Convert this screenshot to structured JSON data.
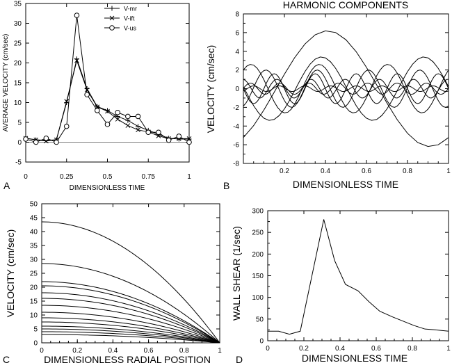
{
  "chart_data": [
    {
      "panel": "A",
      "type": "line",
      "title": "",
      "xlabel": "DIMENSIONLESS TIME",
      "ylabel": "AVERAGE VELOCITY (cm/sec)",
      "xlim": [
        0,
        1
      ],
      "ylim": [
        -5,
        35
      ],
      "xticks": [
        "0",
        "0.25",
        "0.5",
        "0.75",
        "1"
      ],
      "yticks": [
        "-5",
        "0",
        "5",
        "10",
        "15",
        "20",
        "25",
        "30",
        "35"
      ],
      "x": [
        0,
        0.0625,
        0.125,
        0.1875,
        0.25,
        0.3125,
        0.375,
        0.4375,
        0.5,
        0.5625,
        0.625,
        0.6875,
        0.75,
        0.8125,
        0.875,
        0.9375,
        1
      ],
      "series": [
        {
          "name": "V-mr",
          "marker": "plus",
          "values": [
            1,
            0.6,
            0.5,
            0.6,
            10,
            21,
            13.5,
            9,
            8,
            6.5,
            5.5,
            4,
            3,
            2,
            1,
            0.8,
            0.8
          ]
        },
        {
          "name": "V-ift",
          "marker": "x",
          "values": [
            1,
            0.6,
            0.3,
            0.6,
            10.3,
            20.6,
            13.2,
            8.9,
            7.8,
            5.8,
            4.2,
            3.1,
            2.6,
            1.6,
            0.9,
            0.9,
            0.9
          ]
        },
        {
          "name": "V-us",
          "marker": "circle",
          "values": [
            0.8,
            0,
            1,
            0,
            4,
            32,
            12,
            8,
            4.5,
            7.5,
            6.5,
            6.5,
            2.5,
            2.5,
            0.5,
            1.5,
            0
          ]
        }
      ],
      "legend": "top-center"
    },
    {
      "panel": "B",
      "type": "line",
      "title": "HARMONIC COMPONENTS",
      "xlabel": "DIMENSIONLESS TIME",
      "ylabel": "VELOCITY (cm/sec)",
      "xlim": [
        0,
        1
      ],
      "ylim": [
        -8,
        8
      ],
      "xticks": [
        "0.2",
        "0.4",
        "0.6",
        "0.8",
        "1"
      ],
      "yticks": [
        "-8",
        "-6",
        "-4",
        "-2",
        "0",
        "2",
        "4",
        "6",
        "8"
      ],
      "harmonics": [
        {
          "n": 1,
          "amp": 6.2,
          "peak_t": 0.41
        },
        {
          "n": 2,
          "amp": 3.4,
          "peak_t": 0.38
        },
        {
          "n": 3,
          "amp": 2.6,
          "peak_t": 0.37
        },
        {
          "n": 4,
          "amp": 2.0,
          "peak_t": 0.36
        },
        {
          "n": 5,
          "amp": 1.6,
          "peak_t": 0.35
        },
        {
          "n": 6,
          "amp": 1.0,
          "peak_t": 0.33
        },
        {
          "n": 7,
          "amp": 0.6,
          "peak_t": 0.32
        },
        {
          "n": 8,
          "amp": 0.3,
          "peak_t": 0.3
        }
      ]
    },
    {
      "panel": "C",
      "type": "line",
      "title": "",
      "xlabel": "DIMENSIONLESS RADIAL POSITION",
      "ylabel": "VELOCITY (cm/sec)",
      "xlim": [
        0,
        1
      ],
      "ylim": [
        0,
        50
      ],
      "xticks": [
        "0",
        "0.2",
        "0.4",
        "0.6",
        "0.8",
        "1"
      ],
      "yticks": [
        "0",
        "5",
        "10",
        "15",
        "20",
        "25",
        "30",
        "35",
        "40",
        "45",
        "50"
      ],
      "centerline_velocities": [
        43.5,
        28.5,
        22,
        20.5,
        18,
        16,
        13.5,
        11,
        9,
        7.5,
        6,
        5,
        4,
        3
      ]
    },
    {
      "panel": "D",
      "type": "line",
      "title": "",
      "xlabel": "DIMENSIONLESS TIME",
      "ylabel": "WALL SHEAR (1/sec)",
      "xlim": [
        0,
        1
      ],
      "ylim": [
        0,
        300
      ],
      "xticks": [
        "0",
        "0.2",
        "0.4",
        "0.6",
        "0.8",
        "1"
      ],
      "yticks": [
        "0",
        "50",
        "100",
        "150",
        "200",
        "250",
        "300"
      ],
      "x": [
        0,
        0.06,
        0.12,
        0.18,
        0.31,
        0.37,
        0.43,
        0.5,
        0.56,
        0.62,
        0.69,
        0.75,
        0.81,
        0.87,
        0.93,
        1
      ],
      "y": [
        22,
        22,
        15,
        22,
        280,
        185,
        130,
        115,
        90,
        68,
        55,
        45,
        35,
        27,
        25,
        22
      ]
    }
  ],
  "panel_letters": [
    "A",
    "B",
    "C",
    "D"
  ]
}
